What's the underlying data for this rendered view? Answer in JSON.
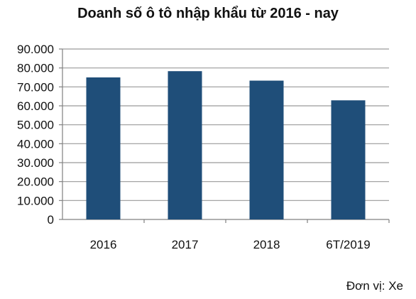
{
  "chart_data": {
    "type": "bar",
    "title": "Doanh số ô tô nhập khẩu từ 2016 - nay",
    "categories": [
      "2016",
      "2017",
      "2018",
      "6T/2019"
    ],
    "series": [
      {
        "values": [
          75000,
          78300,
          73300,
          62900
        ]
      }
    ],
    "ylim": [
      0,
      90000
    ],
    "yticks": [
      0,
      10000,
      20000,
      30000,
      40000,
      50000,
      60000,
      70000,
      80000,
      90000
    ],
    "ytick_labels": [
      "0",
      "10.000",
      "20.000",
      "30.000",
      "40.000",
      "50.000",
      "60.000",
      "70.000",
      "80.000",
      "90.000"
    ],
    "grid": true,
    "legend": "none",
    "bar_color": "#1f4e79",
    "grid_color": "#9a9a9a",
    "unit_note": "Đơn vị:  Xe"
  }
}
